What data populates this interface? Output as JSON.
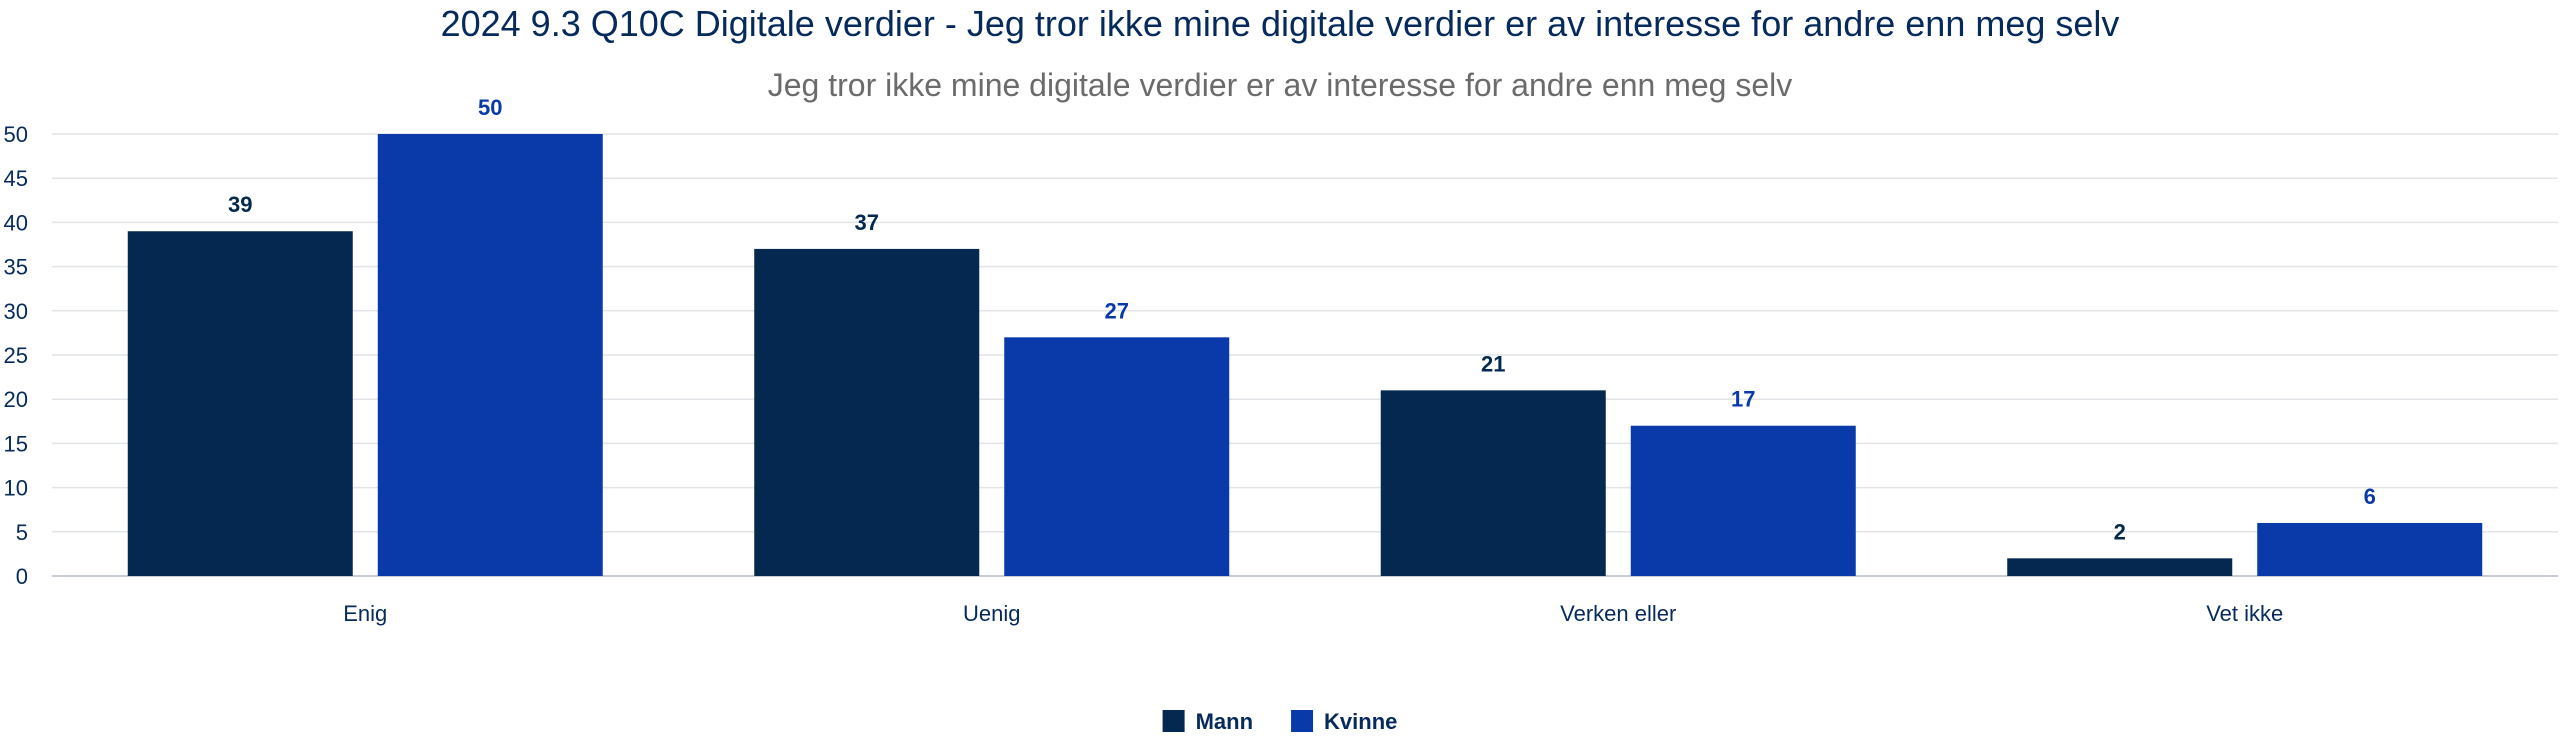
{
  "chart_data": {
    "type": "bar",
    "title": "2024 9.3 Q10C Digitale verdier - Jeg tror ikke mine digitale verdier er av interesse for andre enn meg selv",
    "subtitle": "Jeg tror ikke mine digitale verdier er av interesse for andre enn meg selv",
    "categories": [
      "Enig",
      "Uenig",
      "Verken eller",
      "Vet ikke"
    ],
    "series": [
      {
        "name": "Mann",
        "values": [
          39,
          37,
          21,
          2
        ],
        "color": "#04284f",
        "label_color": "#04284f"
      },
      {
        "name": "Kvinne",
        "values": [
          50,
          27,
          17,
          6
        ],
        "color": "#0a3aaa",
        "label_color": "#0a3aaa"
      }
    ],
    "ylim": [
      0,
      50
    ],
    "yticks": [
      0,
      5,
      10,
      15,
      20,
      25,
      30,
      35,
      40,
      45,
      50
    ],
    "xlabel": "",
    "ylabel": "",
    "grid": true,
    "legend": "bottom-center"
  }
}
